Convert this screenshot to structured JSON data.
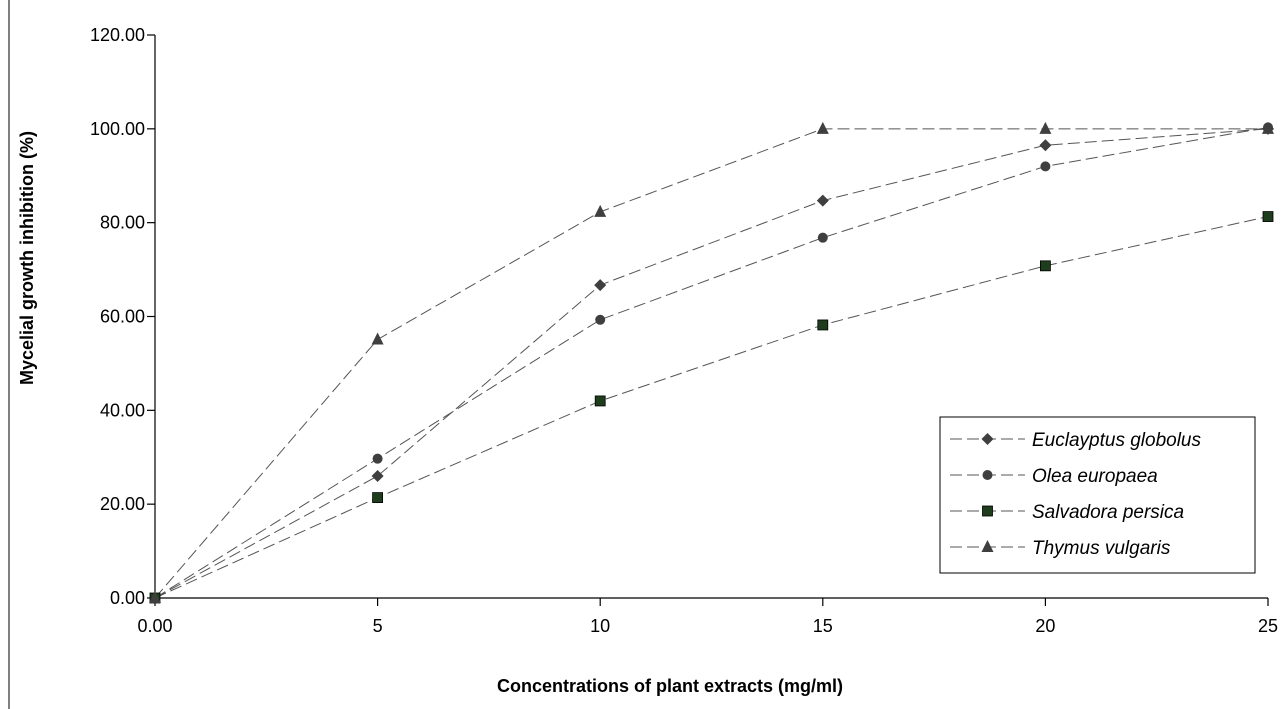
{
  "chart_data": {
    "type": "line",
    "title": "",
    "xlabel": "Concentrations of plant extracts (mg/ml)",
    "ylabel": "Mycelial growth inhibition (%)",
    "categories": [
      "0.00",
      "5",
      "10",
      "15",
      "20",
      "25"
    ],
    "y_ticks": [
      "0.00",
      "20.00",
      "40.00",
      "60.00",
      "80.00",
      "100.00",
      "120.00"
    ],
    "ylim": [
      0,
      120
    ],
    "grid": false,
    "legend_position": "bottom-right",
    "series": [
      {
        "name": "Euclayptus globolus",
        "marker": "diamond",
        "values": [
          0,
          26,
          66.7,
          84.7,
          96.5,
          100
        ]
      },
      {
        "name": "Olea europaea",
        "marker": "circle",
        "values": [
          0,
          29.7,
          59.3,
          76.8,
          92,
          100.3
        ]
      },
      {
        "name": "Salvadora persica",
        "marker": "square",
        "values": [
          0,
          21.4,
          42,
          58.2,
          70.8,
          81.3
        ]
      },
      {
        "name": "Thymus vulgaris",
        "marker": "triangle",
        "values": [
          0,
          55.1,
          82.3,
          100,
          100,
          100
        ]
      }
    ],
    "colors": {
      "line": "#555555",
      "marker_dark": "#3f3f3f",
      "marker_square": "#1d3d1d"
    }
  }
}
